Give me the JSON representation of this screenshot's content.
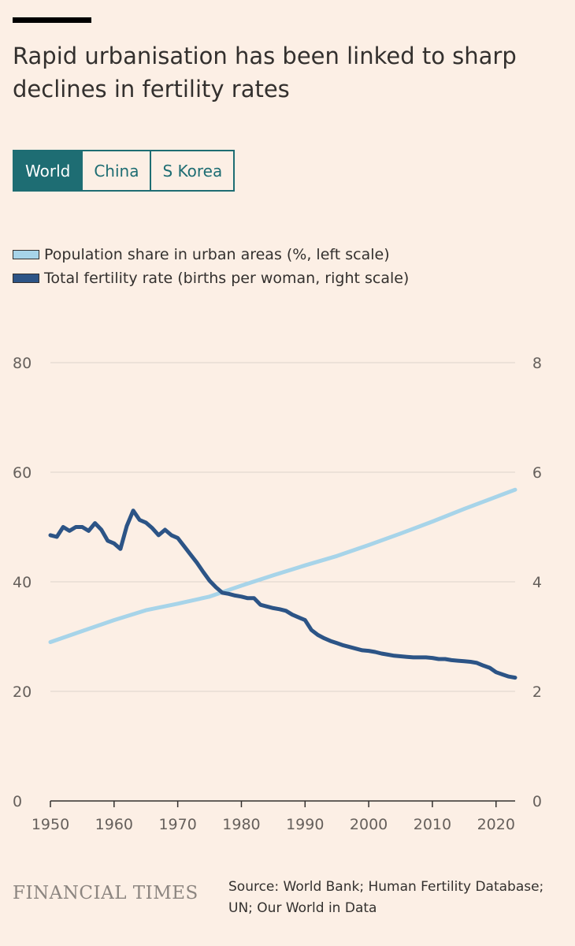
{
  "header": {
    "title": "Rapid urbanisation has been linked to sharp declines in fertility rates"
  },
  "tabs": [
    {
      "label": "World",
      "active": true
    },
    {
      "label": "China",
      "active": false
    },
    {
      "label": "S Korea",
      "active": false
    }
  ],
  "colors": {
    "background": "#fcefe5",
    "accent": "#1e6d73",
    "urban": "#a7d4e9",
    "fertility": "#2c5486",
    "grid": "#dcd3cb"
  },
  "chart_data": {
    "type": "line",
    "xlim": [
      1950,
      2023
    ],
    "x_ticks": [
      1950,
      1960,
      1970,
      1980,
      1990,
      2000,
      2010,
      2020
    ],
    "y_left": {
      "range": [
        0,
        80
      ],
      "ticks": [
        0,
        20,
        40,
        60,
        80
      ]
    },
    "y_right": {
      "range": [
        0,
        8
      ],
      "ticks": [
        0,
        2,
        4,
        6,
        8
      ]
    },
    "grid": true,
    "legend_position": "top-left",
    "series": [
      {
        "name": "Population share in urban areas (%, left scale)",
        "axis": "left",
        "color": "#a7d4e9",
        "points": [
          [
            1950,
            29.0
          ],
          [
            1955,
            31.0
          ],
          [
            1960,
            33.0
          ],
          [
            1965,
            34.8
          ],
          [
            1970,
            36.0
          ],
          [
            1975,
            37.3
          ],
          [
            1980,
            39.3
          ],
          [
            1985,
            41.2
          ],
          [
            1990,
            43.0
          ],
          [
            1995,
            44.7
          ],
          [
            2000,
            46.7
          ],
          [
            2005,
            48.8
          ],
          [
            2010,
            51.0
          ],
          [
            2015,
            53.3
          ],
          [
            2020,
            55.5
          ],
          [
            2023,
            56.8
          ]
        ]
      },
      {
        "name": "Total fertility rate (births per woman, right scale)",
        "axis": "right",
        "color": "#2c5486",
        "points": [
          [
            1950,
            4.85
          ],
          [
            1951,
            4.82
          ],
          [
            1952,
            5.0
          ],
          [
            1953,
            4.93
          ],
          [
            1954,
            5.0
          ],
          [
            1955,
            5.0
          ],
          [
            1956,
            4.93
          ],
          [
            1957,
            5.07
          ],
          [
            1958,
            4.95
          ],
          [
            1959,
            4.75
          ],
          [
            1960,
            4.7
          ],
          [
            1961,
            4.6
          ],
          [
            1962,
            5.02
          ],
          [
            1963,
            5.3
          ],
          [
            1964,
            5.13
          ],
          [
            1965,
            5.08
          ],
          [
            1966,
            4.98
          ],
          [
            1967,
            4.85
          ],
          [
            1968,
            4.95
          ],
          [
            1969,
            4.85
          ],
          [
            1970,
            4.8
          ],
          [
            1971,
            4.65
          ],
          [
            1972,
            4.5
          ],
          [
            1973,
            4.35
          ],
          [
            1974,
            4.18
          ],
          [
            1975,
            4.02
          ],
          [
            1976,
            3.9
          ],
          [
            1977,
            3.8
          ],
          [
            1978,
            3.78
          ],
          [
            1979,
            3.75
          ],
          [
            1980,
            3.73
          ],
          [
            1981,
            3.7
          ],
          [
            1982,
            3.7
          ],
          [
            1983,
            3.58
          ],
          [
            1984,
            3.55
          ],
          [
            1985,
            3.52
          ],
          [
            1986,
            3.5
          ],
          [
            1987,
            3.47
          ],
          [
            1988,
            3.4
          ],
          [
            1989,
            3.35
          ],
          [
            1990,
            3.3
          ],
          [
            1991,
            3.12
          ],
          [
            1992,
            3.03
          ],
          [
            1993,
            2.97
          ],
          [
            1994,
            2.92
          ],
          [
            1995,
            2.88
          ],
          [
            1996,
            2.84
          ],
          [
            1997,
            2.81
          ],
          [
            1998,
            2.78
          ],
          [
            1999,
            2.75
          ],
          [
            2000,
            2.74
          ],
          [
            2001,
            2.72
          ],
          [
            2002,
            2.69
          ],
          [
            2003,
            2.67
          ],
          [
            2004,
            2.65
          ],
          [
            2005,
            2.64
          ],
          [
            2006,
            2.63
          ],
          [
            2007,
            2.62
          ],
          [
            2008,
            2.62
          ],
          [
            2009,
            2.62
          ],
          [
            2010,
            2.61
          ],
          [
            2011,
            2.59
          ],
          [
            2012,
            2.59
          ],
          [
            2013,
            2.57
          ],
          [
            2014,
            2.56
          ],
          [
            2015,
            2.55
          ],
          [
            2016,
            2.54
          ],
          [
            2017,
            2.52
          ],
          [
            2018,
            2.47
          ],
          [
            2019,
            2.43
          ],
          [
            2020,
            2.35
          ],
          [
            2021,
            2.31
          ],
          [
            2022,
            2.27
          ],
          [
            2023,
            2.25
          ]
        ]
      }
    ]
  },
  "footer": {
    "logo": "FINANCIAL TIMES",
    "source_line1": "Source: World Bank; Human Fertility Database;",
    "source_line2": "UN; Our World in Data"
  }
}
